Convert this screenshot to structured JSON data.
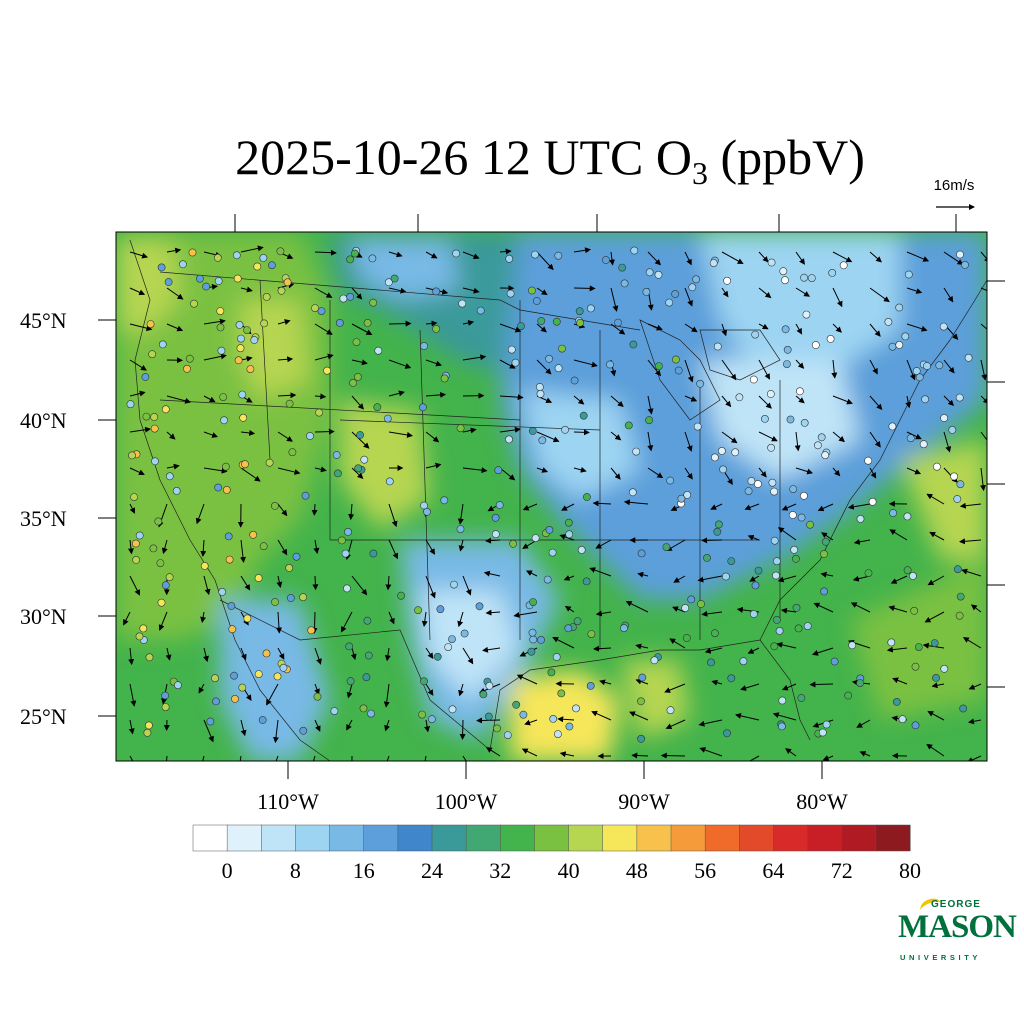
{
  "title": {
    "prefix": "2025-10-26 12 UTC O",
    "subscript": "3",
    "suffix": " (ppbV)"
  },
  "vector_reference": {
    "label": "16m/s"
  },
  "map": {
    "lat_labels": [
      "45°N",
      "40°N",
      "35°N",
      "30°N",
      "25°N"
    ],
    "lon_labels": [
      "110°W",
      "100°W",
      "90°W",
      "80°W"
    ],
    "lat_range": [
      22.6,
      49.3
    ],
    "lon_range": [
      -119.9,
      -70.6
    ]
  },
  "colorbar": {
    "tick_labels": [
      "0",
      "8",
      "16",
      "24",
      "32",
      "40",
      "48",
      "56",
      "64",
      "72",
      "80"
    ],
    "levels": [
      0,
      4,
      8,
      12,
      16,
      20,
      24,
      28,
      32,
      36,
      40,
      44,
      48,
      52,
      56,
      60,
      64,
      68,
      72,
      76,
      80,
      84
    ],
    "colors": [
      "#ffffff",
      "#dff2fb",
      "#bfe4f7",
      "#9dd4f2",
      "#78b9e6",
      "#5c9fda",
      "#3f86cb",
      "#3a9a9a",
      "#41a874",
      "#43b34b",
      "#7ac142",
      "#b6d551",
      "#f6e65a",
      "#f7c14b",
      "#f59b3a",
      "#f06a2a",
      "#e34a2a",
      "#d82a28",
      "#c81e26",
      "#b01a22",
      "#8c1a1e"
    ]
  },
  "logo": {
    "line1": "GEORGE",
    "line2": "MASON",
    "line3": "UNIVERSITY",
    "color": "#00703c",
    "accent": "#f2c500"
  },
  "ocean_color": "#43b34b",
  "land_color": "#7ac142"
}
